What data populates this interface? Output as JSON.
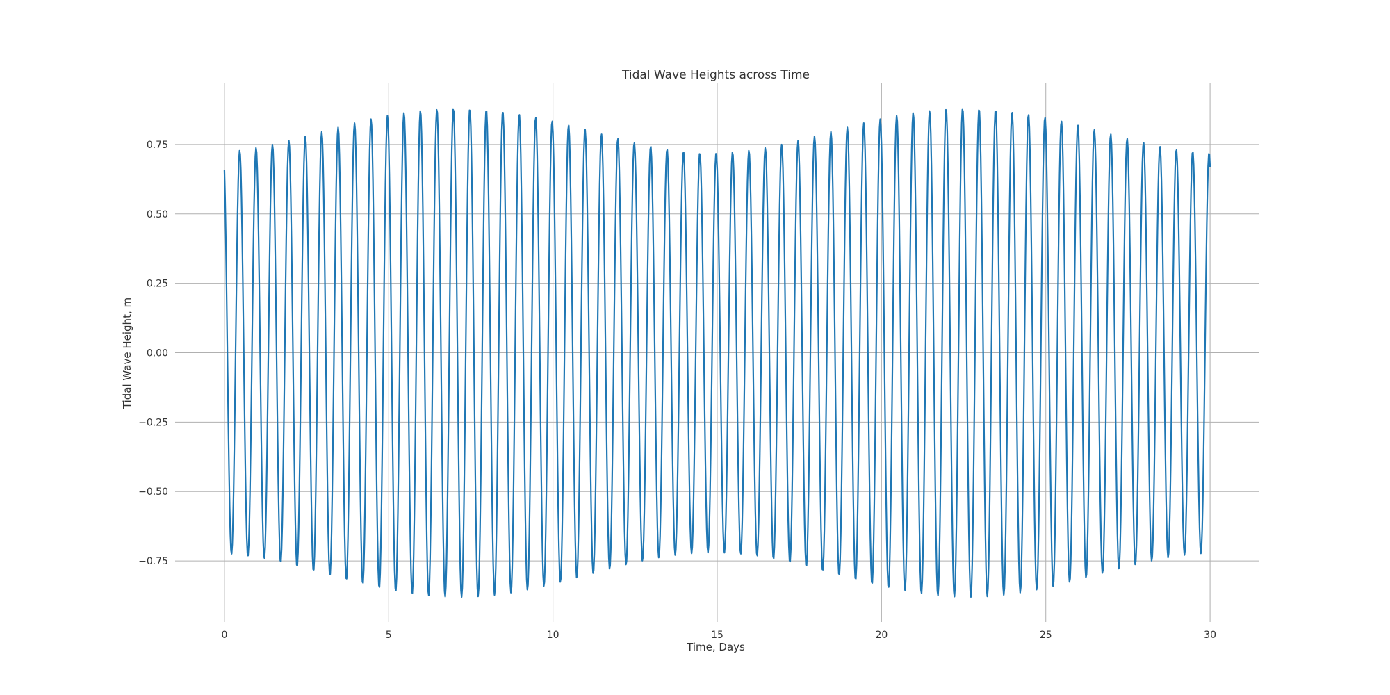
{
  "chart_data": {
    "type": "line",
    "title": "Tidal Wave Heights across Time",
    "xlabel": "Time, Days",
    "ylabel": "Tidal Wave Height, m",
    "xlim": [
      -1.5,
      31.5
    ],
    "ylim": [
      -0.97,
      0.97
    ],
    "x_ticks": [
      0,
      5,
      10,
      15,
      20,
      25,
      30
    ],
    "x_tick_labels": [
      "0",
      "5",
      "10",
      "15",
      "20",
      "25",
      "30"
    ],
    "y_ticks": [
      -0.75,
      -0.5,
      -0.25,
      0.0,
      0.25,
      0.5,
      0.75
    ],
    "y_tick_labels": [
      "−0.75",
      "−0.50",
      "−0.25",
      "0.00",
      "0.25",
      "0.50",
      "0.75"
    ],
    "grid": true,
    "series": [
      {
        "color": "#1f77b4",
        "x_start": 0,
        "x_end": 30,
        "x_step": 0.02,
        "components": [
          {
            "amplitude": 0.8,
            "period_days": 0.5,
            "phase_rad": 0.4
          },
          {
            "amplitude": 0.08,
            "period_days": 0.51667,
            "phase_rad": 3.28
          }
        ]
      }
    ]
  }
}
